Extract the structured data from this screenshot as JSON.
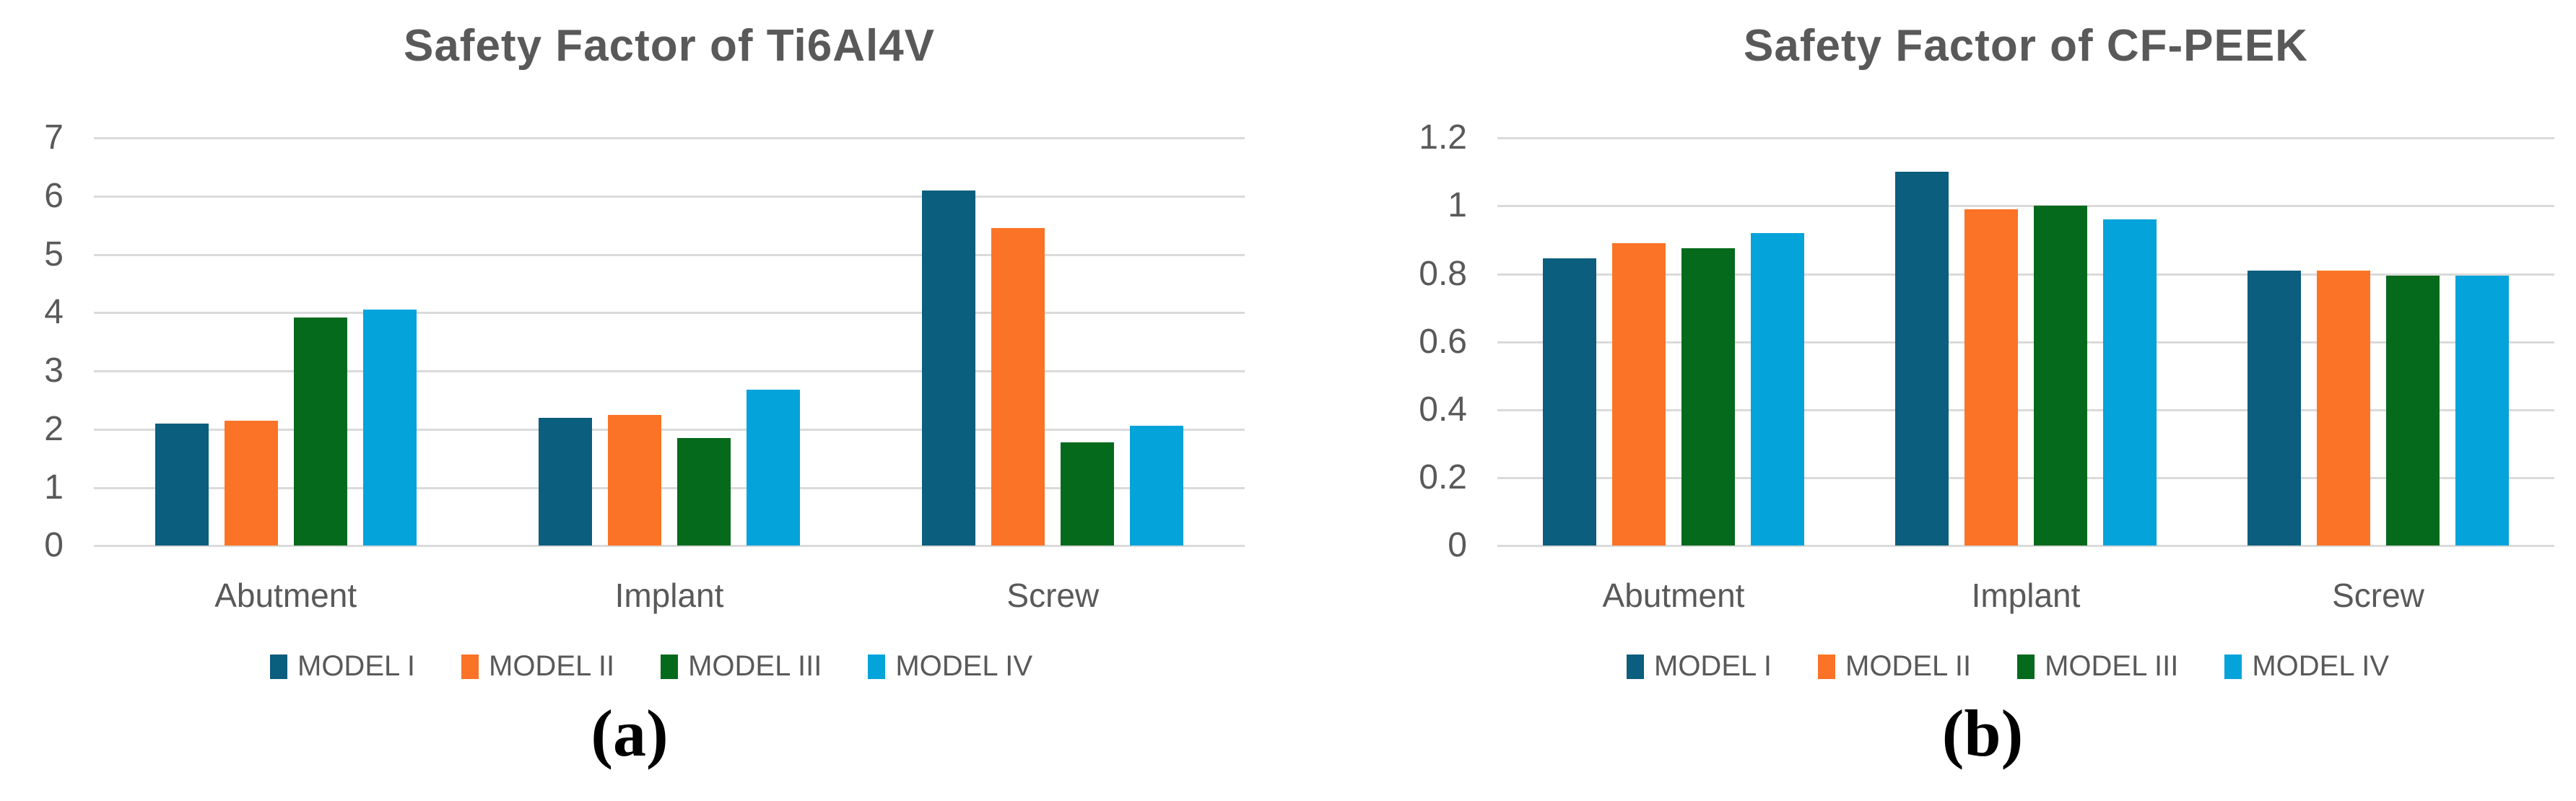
{
  "page": {
    "background": "#ffffff",
    "gridline_color": "#DADADA",
    "axis_text_color": "#595959",
    "title_color": "#595959",
    "caption_color": "#000000"
  },
  "series_colors": {
    "model_i": "#0B5E7D",
    "model_ii": "#FB7327",
    "model_iii": "#066A1C",
    "model_iv": "#04A3DA"
  },
  "chart_data": [
    {
      "type": "bar",
      "title": "Safety Factor of Ti6Al4V",
      "caption": "(a)",
      "categories": [
        "Abutment",
        "Implant",
        "Screw"
      ],
      "series": [
        {
          "name": "MODEL I",
          "color": "#0B5E7D",
          "values": [
            2.1,
            2.2,
            6.1
          ]
        },
        {
          "name": "MODEL II",
          "color": "#FB7327",
          "values": [
            2.15,
            2.25,
            5.45
          ]
        },
        {
          "name": "MODEL III",
          "color": "#066A1C",
          "values": [
            3.92,
            1.85,
            1.78
          ]
        },
        {
          "name": "MODEL IV",
          "color": "#04A3DA",
          "values": [
            4.05,
            2.68,
            2.06
          ]
        }
      ],
      "xlabel": "",
      "ylabel": "",
      "ylim": [
        0,
        7
      ],
      "yticks": [
        0,
        1,
        2,
        3,
        4,
        5,
        6,
        7
      ],
      "grid": true,
      "legend_position": "bottom"
    },
    {
      "type": "bar",
      "title": "Safety Factor of CF-PEEK",
      "caption": "(b)",
      "categories": [
        "Abutment",
        "Implant",
        "Screw"
      ],
      "series": [
        {
          "name": "MODEL I",
          "color": "#0B5E7D",
          "values": [
            0.845,
            1.1,
            0.81
          ]
        },
        {
          "name": "MODEL II",
          "color": "#FB7327",
          "values": [
            0.89,
            0.99,
            0.81
          ]
        },
        {
          "name": "MODEL III",
          "color": "#066A1C",
          "values": [
            0.875,
            1.0,
            0.795
          ]
        },
        {
          "name": "MODEL IV",
          "color": "#04A3DA",
          "values": [
            0.92,
            0.96,
            0.795
          ]
        }
      ],
      "xlabel": "",
      "ylabel": "",
      "ylim": [
        0,
        1.2
      ],
      "yticks": [
        0,
        0.2,
        0.4,
        0.6,
        0.8,
        1,
        1.2
      ],
      "grid": true,
      "legend_position": "bottom"
    }
  ]
}
